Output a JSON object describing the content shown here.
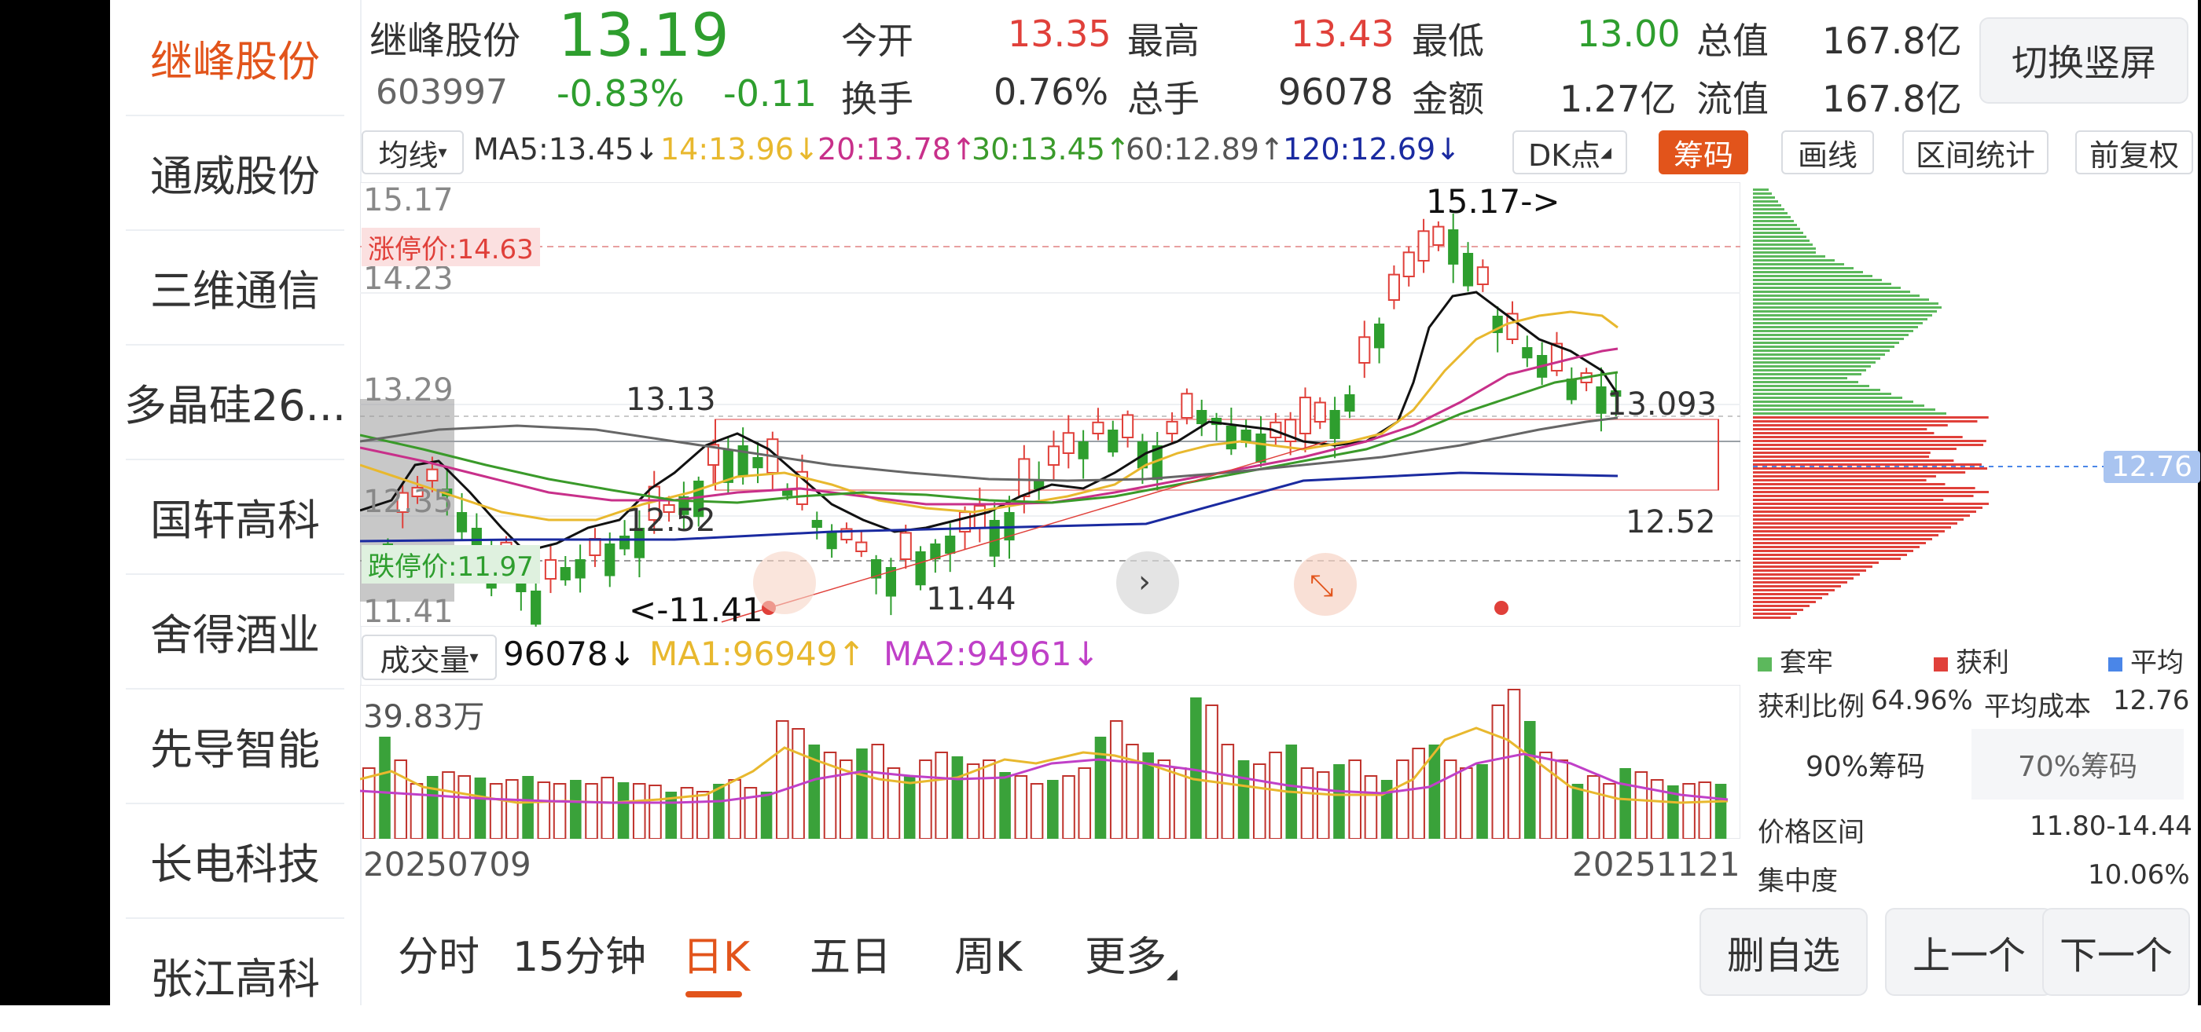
{
  "sidebar": {
    "items": [
      {
        "label": "继峰股份"
      },
      {
        "label": "通威股份"
      },
      {
        "label": "三维通信"
      },
      {
        "label": "多晶硅26..."
      },
      {
        "label": "国轩高科"
      },
      {
        "label": "舍得酒业"
      },
      {
        "label": "先导智能"
      },
      {
        "label": "长电科技"
      },
      {
        "label": "张江高科"
      }
    ]
  },
  "quote": {
    "name": "继峰股份",
    "code": "603997",
    "price": "13.19",
    "change_pct": "-0.83%",
    "change": "-0.11",
    "open_label": "今开",
    "open": "13.35",
    "high_label": "最高",
    "high": "13.43",
    "low_label": "最低",
    "low": "13.00",
    "mcap_label": "总值",
    "mcap": "167.8亿",
    "turnover_label": "换手",
    "turnover": "0.76%",
    "vol_label": "总手",
    "vol": "96078",
    "amount_label": "金额",
    "amount": "1.27亿",
    "float_label": "流值",
    "float": "167.8亿",
    "switch_btn": "切换竖屏"
  },
  "ma_bar": {
    "selector": "均线",
    "ma5": "MA5:13.45↓",
    "ma14": "14:13.96↓",
    "ma20": "20:13.78↑",
    "ma30": "30:13.45↑",
    "ma60": "60:12.89↑",
    "ma120": "120:12.69↓",
    "dk_btn": "DK点",
    "chip_btn": "筹码",
    "draw_btn": "画线",
    "range_btn": "区间统计",
    "adjust_btn": "前复权"
  },
  "kline": {
    "y_labels": [
      "15.17",
      "14.23",
      "13.29",
      "12.35",
      "11.41"
    ],
    "limit_up": "涨停价:14.63",
    "limit_down": "跌停价:11.97",
    "high_marker": "15.17->",
    "low_marker": "<-11.41",
    "range_top_left": "13.13",
    "range_bottom_left": "12.52",
    "range_bottom_mid": "11.44",
    "range_top_right": "13.093",
    "range_bottom_right": "12.52",
    "colors": {
      "up": "#e0403a",
      "down": "#2e9e2e",
      "ma5": "#111111",
      "ma14": "#e8b82e",
      "ma20": "#c8308a",
      "ma30": "#3a9a2a",
      "ma60": "#666666",
      "ma120": "#1a2aa0"
    }
  },
  "chip": {
    "avg_cost_tag": "12.76",
    "legend": {
      "locked": "套牢",
      "profit": "获利",
      "avg": "平均"
    },
    "profit_ratio_label": "获利比例",
    "profit_ratio": "64.96%",
    "avg_cost_label": "平均成本",
    "avg_cost": "12.76",
    "tab_90": "90%筹码",
    "tab_70": "70%筹码",
    "price_range_label": "价格区间",
    "price_range": "11.80-14.44",
    "concentration_label": "集中度",
    "concentration": "10.06%"
  },
  "volume": {
    "selector": "成交量",
    "value": "96078↓",
    "ma1": "MA1:96949↑",
    "ma2": "MA2:94961↓",
    "max_label": "39.83万",
    "date_start": "20250709",
    "date_end": "20251121"
  },
  "periods": [
    {
      "label": "分时"
    },
    {
      "label": "15分钟"
    },
    {
      "label": "日K"
    },
    {
      "label": "五日"
    },
    {
      "label": "周K"
    },
    {
      "label": "更多"
    }
  ],
  "buttons": {
    "remove": "删自选",
    "prev": "上一个",
    "next": "下一个"
  }
}
